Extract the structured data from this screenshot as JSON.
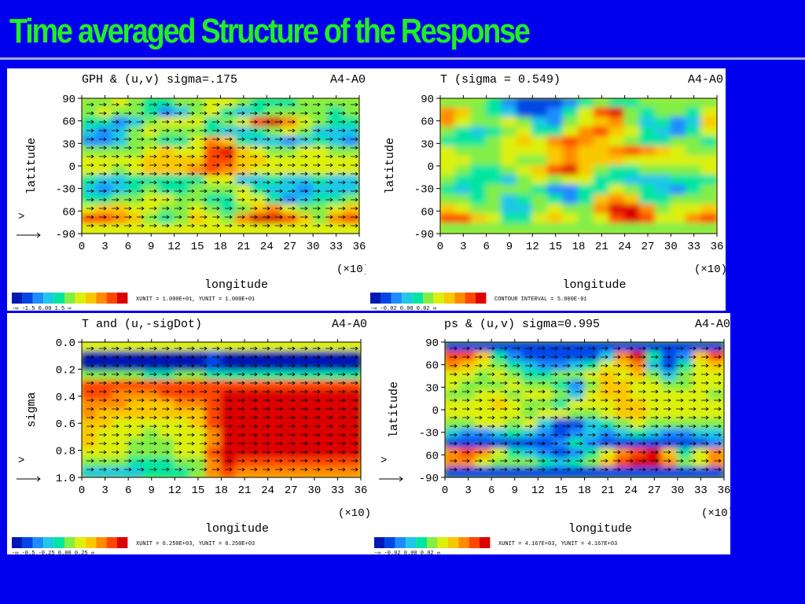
{
  "slide": {
    "title": "Time averaged Structure of the Response",
    "colors": {
      "background": "#0000ee",
      "title": "#22ee22",
      "rule": "#a9a9c4"
    }
  },
  "colorscale": [
    "#0018b4",
    "#0046e6",
    "#1e8cff",
    "#1ec8e6",
    "#00e6a0",
    "#82ee46",
    "#dcf00a",
    "#fac800",
    "#ff8c00",
    "#ff4600",
    "#dc0000"
  ],
  "chart_data": [
    {
      "id": "tl",
      "type": "heatmap",
      "title": "GPH & (u,v) sigma=.175",
      "experiment": "A4-A0",
      "xlabel": "longitude",
      "ylabel": "latitude",
      "x_multiplier": "(×10)",
      "xticks": [
        "0",
        "3",
        "6",
        "9",
        "12",
        "15",
        "18",
        "21",
        "24",
        "27",
        "30",
        "33",
        "36"
      ],
      "yticks": [
        "90",
        "60",
        "30",
        "0",
        "-30",
        "60",
        "-90"
      ],
      "xlim": [
        0,
        360
      ],
      "ylim": [
        -90,
        90
      ],
      "vectors": true,
      "colorbar_label": "-∞  -1.5  0.00  1.5  ∞",
      "footer": "XUNIT = 1.000E+01, YUNIT = 1.000E+01",
      "field": [
        [
          5,
          5,
          6,
          5,
          4,
          4,
          5,
          5,
          6,
          6,
          5,
          4,
          4,
          4,
          5,
          5,
          5,
          5
        ],
        [
          5,
          6,
          5,
          5,
          4,
          2,
          3,
          5,
          6,
          4,
          3,
          4,
          5,
          5,
          5,
          5,
          4,
          5
        ],
        [
          4,
          4,
          2,
          3,
          5,
          6,
          6,
          6,
          4,
          5,
          6,
          9,
          10,
          8,
          6,
          5,
          4,
          4
        ],
        [
          3,
          2,
          3,
          5,
          6,
          5,
          5,
          5,
          4,
          3,
          3,
          4,
          5,
          6,
          5,
          3,
          3,
          3
        ],
        [
          2,
          2,
          3,
          5,
          5,
          4,
          4,
          6,
          8,
          7,
          4,
          3,
          3,
          2,
          3,
          4,
          3,
          2
        ],
        [
          5,
          5,
          5,
          5,
          6,
          7,
          6,
          6,
          9,
          10,
          7,
          6,
          5,
          5,
          6,
          6,
          5,
          5
        ],
        [
          6,
          6,
          6,
          6,
          7,
          7,
          7,
          7,
          9,
          9,
          7,
          7,
          6,
          6,
          6,
          6,
          6,
          6
        ],
        [
          6,
          6,
          5,
          6,
          7,
          7,
          7,
          8,
          9,
          8,
          7,
          6,
          6,
          6,
          6,
          6,
          6,
          6
        ],
        [
          4,
          3,
          3,
          4,
          4,
          4,
          4,
          4,
          6,
          6,
          3,
          3,
          4,
          3,
          3,
          4,
          3,
          3
        ],
        [
          3,
          2,
          3,
          4,
          5,
          4,
          4,
          5,
          5,
          5,
          6,
          4,
          3,
          3,
          2,
          3,
          3,
          3
        ],
        [
          4,
          4,
          5,
          5,
          6,
          6,
          5,
          5,
          4,
          4,
          6,
          6,
          4,
          2,
          3,
          4,
          4,
          5
        ],
        [
          6,
          7,
          7,
          6,
          6,
          5,
          5,
          6,
          5,
          4,
          5,
          7,
          8,
          6,
          5,
          5,
          6,
          7
        ],
        [
          9,
          9,
          8,
          7,
          5,
          4,
          5,
          7,
          6,
          5,
          8,
          10,
          10,
          9,
          7,
          5,
          8,
          9
        ],
        [
          6,
          6,
          6,
          6,
          6,
          6,
          6,
          6,
          6,
          6,
          6,
          6,
          6,
          6,
          6,
          6,
          6,
          6
        ]
      ]
    },
    {
      "id": "tr",
      "type": "heatmap",
      "title": "T (sigma = 0.549)",
      "experiment": "A4-A0",
      "xlabel": "longitude",
      "ylabel": "latitude",
      "x_multiplier": "(×10)",
      "xticks": [
        "0",
        "3",
        "6",
        "9",
        "12",
        "15",
        "18",
        "21",
        "24",
        "27",
        "30",
        "33",
        "36"
      ],
      "yticks": [
        "90",
        "60",
        "30",
        "0",
        "-30",
        "60",
        "-90"
      ],
      "xlim": [
        0,
        360
      ],
      "ylim": [
        -90,
        90
      ],
      "vectors": false,
      "colorbar_label": "-∞  -0.02  0.00  0.02  ∞",
      "footer": "CONTOUR INTERVAL = 5.000E-01",
      "field": [
        [
          5,
          5,
          5,
          4,
          2,
          1,
          1,
          1,
          2,
          4,
          5,
          4,
          4,
          5,
          5,
          5,
          5,
          5
        ],
        [
          8,
          7,
          5,
          4,
          3,
          1,
          1,
          2,
          4,
          6,
          9,
          10,
          5,
          4,
          5,
          5,
          4,
          6
        ],
        [
          8,
          6,
          5,
          5,
          6,
          5,
          3,
          2,
          5,
          6,
          7,
          8,
          5,
          3,
          4,
          2,
          3,
          7
        ],
        [
          5,
          4,
          3,
          4,
          5,
          6,
          4,
          4,
          6,
          8,
          9,
          7,
          6,
          4,
          3,
          2,
          4,
          6
        ],
        [
          4,
          4,
          4,
          5,
          6,
          7,
          6,
          8,
          9,
          8,
          7,
          6,
          5,
          4,
          4,
          5,
          5,
          4
        ],
        [
          6,
          5,
          5,
          5,
          6,
          6,
          6,
          7,
          8,
          7,
          7,
          8,
          9,
          8,
          7,
          6,
          5,
          5
        ],
        [
          6,
          6,
          5,
          5,
          6,
          5,
          5,
          7,
          8,
          7,
          7,
          7,
          6,
          6,
          6,
          6,
          6,
          6
        ],
        [
          6,
          5,
          4,
          4,
          5,
          6,
          7,
          9,
          10,
          7,
          5,
          4,
          4,
          5,
          5,
          5,
          5,
          6
        ],
        [
          5,
          4,
          4,
          4,
          3,
          5,
          6,
          5,
          6,
          6,
          4,
          4,
          3,
          3,
          3,
          4,
          4,
          4
        ],
        [
          4,
          3,
          4,
          5,
          5,
          5,
          4,
          2,
          2,
          4,
          4,
          6,
          5,
          4,
          3,
          2,
          4,
          5
        ],
        [
          5,
          5,
          4,
          5,
          3,
          4,
          5,
          4,
          2,
          4,
          7,
          8,
          7,
          4,
          4,
          5,
          5,
          5
        ],
        [
          7,
          6,
          5,
          5,
          3,
          3,
          5,
          6,
          5,
          5,
          8,
          10,
          10,
          8,
          5,
          6,
          6,
          7
        ],
        [
          9,
          9,
          7,
          6,
          4,
          4,
          6,
          7,
          6,
          5,
          6,
          9,
          10,
          9,
          6,
          6,
          8,
          9
        ],
        [
          5,
          5,
          5,
          5,
          5,
          5,
          5,
          5,
          5,
          5,
          5,
          5,
          5,
          5,
          5,
          5,
          5,
          5
        ]
      ]
    },
    {
      "id": "bl",
      "type": "heatmap",
      "title": "T and (u,-sigDot)",
      "experiment": "A4-A0",
      "xlabel": "longitude",
      "ylabel": "sigma",
      "x_multiplier": "(×10)",
      "xticks": [
        "0",
        "3",
        "6",
        "9",
        "12",
        "15",
        "18",
        "21",
        "24",
        "27",
        "30",
        "33",
        "36"
      ],
      "yticks": [
        "0.0",
        "0.2",
        "0.4",
        "0.6",
        "0.8",
        "1.0"
      ],
      "xlim": [
        0,
        360
      ],
      "ylim": [
        0.0,
        1.0
      ],
      "vectors": true,
      "colorbar_label": "-∞  -0.5  -0.25  0.00  0.25  ∞",
      "footer": "XUNIT = 6.250E+03, YUNIT = 6.250E+03",
      "field": [
        [
          6,
          6,
          6,
          6,
          6,
          6,
          6,
          6,
          6,
          6,
          6,
          6,
          6,
          6,
          6,
          6,
          6,
          6
        ],
        [
          0,
          0,
          0,
          0,
          0,
          0,
          0,
          0,
          1,
          0,
          0,
          0,
          0,
          0,
          0,
          0,
          0,
          0
        ],
        [
          0,
          0,
          0,
          0,
          0,
          0,
          0,
          0,
          1,
          0,
          0,
          0,
          0,
          0,
          0,
          0,
          0,
          0
        ],
        [
          5,
          5,
          5,
          5,
          4,
          4,
          5,
          5,
          4,
          4,
          4,
          4,
          4,
          4,
          4,
          4,
          4,
          4
        ],
        [
          9,
          9,
          9,
          9,
          9,
          9,
          9,
          9,
          9,
          9,
          9,
          9,
          9,
          9,
          9,
          9,
          9,
          9
        ],
        [
          9,
          9,
          8,
          8,
          8,
          9,
          9,
          9,
          9,
          10,
          10,
          10,
          10,
          10,
          10,
          10,
          10,
          10
        ],
        [
          8,
          8,
          8,
          7,
          7,
          7,
          8,
          8,
          9,
          10,
          10,
          10,
          10,
          10,
          10,
          10,
          10,
          10
        ],
        [
          8,
          7,
          7,
          7,
          7,
          7,
          7,
          7,
          9,
          10,
          10,
          10,
          10,
          10,
          10,
          10,
          10,
          10
        ],
        [
          7,
          7,
          6,
          6,
          6,
          6,
          6,
          7,
          9,
          10,
          10,
          10,
          10,
          10,
          10,
          10,
          10,
          10
        ],
        [
          7,
          6,
          6,
          6,
          5,
          6,
          6,
          6,
          8,
          10,
          10,
          10,
          10,
          10,
          10,
          10,
          10,
          10
        ],
        [
          7,
          6,
          6,
          5,
          5,
          5,
          6,
          6,
          8,
          10,
          10,
          10,
          10,
          10,
          10,
          10,
          10,
          10
        ],
        [
          6,
          6,
          6,
          5,
          5,
          5,
          6,
          6,
          9,
          10,
          10,
          10,
          10,
          10,
          10,
          10,
          10,
          10
        ],
        [
          5,
          5,
          5,
          4,
          4,
          4,
          5,
          5,
          8,
          10,
          9,
          9,
          9,
          9,
          9,
          9,
          9,
          9
        ],
        [
          3,
          3,
          3,
          3,
          4,
          4,
          4,
          5,
          8,
          9,
          8,
          8,
          8,
          8,
          8,
          8,
          8,
          8
        ]
      ]
    },
    {
      "id": "br",
      "type": "heatmap",
      "title": "ps & (u,v) sigma=0.995",
      "experiment": "A4-A0",
      "xlabel": "longitude",
      "ylabel": "latitude",
      "x_multiplier": "(×10)",
      "xticks": [
        "0",
        "3",
        "6",
        "9",
        "12",
        "15",
        "18",
        "21",
        "24",
        "27",
        "30",
        "33",
        "36"
      ],
      "yticks": [
        "90",
        "60",
        "30",
        "0",
        "-30",
        "60",
        "-90"
      ],
      "xlim": [
        0,
        360
      ],
      "ylim": [
        -90,
        90
      ],
      "vectors": true,
      "colorbar_label": "-∞  -0.02  0.00  0.02  ∞",
      "footer": "XUNIT = 4.167E+03, YUNIT = 4.167E+03",
      "field": [
        [
          1,
          1,
          1,
          1,
          1,
          1,
          1,
          1,
          1,
          1,
          1,
          1,
          1,
          1,
          1,
          1,
          1,
          1
        ],
        [
          9,
          9,
          7,
          4,
          2,
          1,
          1,
          1,
          1,
          1,
          3,
          8,
          10,
          4,
          1,
          2,
          7,
          9
        ],
        [
          8,
          7,
          6,
          5,
          4,
          3,
          2,
          2,
          3,
          4,
          6,
          7,
          8,
          3,
          1,
          4,
          6,
          7
        ],
        [
          6,
          6,
          5,
          6,
          5,
          4,
          4,
          5,
          5,
          6,
          7,
          6,
          7,
          5,
          3,
          5,
          6,
          6
        ],
        [
          6,
          5,
          5,
          5,
          6,
          5,
          5,
          4,
          2,
          5,
          7,
          7,
          6,
          6,
          5,
          5,
          6,
          6
        ],
        [
          5,
          5,
          6,
          6,
          5,
          6,
          6,
          5,
          3,
          6,
          7,
          7,
          6,
          6,
          6,
          6,
          6,
          5
        ],
        [
          6,
          6,
          6,
          7,
          6,
          5,
          5,
          4,
          6,
          6,
          6,
          7,
          7,
          6,
          6,
          6,
          6,
          6
        ],
        [
          6,
          6,
          6,
          6,
          6,
          5,
          6,
          6,
          5,
          5,
          6,
          7,
          7,
          6,
          6,
          6,
          6,
          6
        ],
        [
          5,
          5,
          6,
          6,
          5,
          6,
          3,
          1,
          1,
          3,
          4,
          5,
          6,
          5,
          5,
          5,
          5,
          5
        ],
        [
          3,
          2,
          2,
          3,
          4,
          3,
          2,
          1,
          2,
          3,
          2,
          3,
          4,
          3,
          2,
          2,
          3,
          3
        ],
        [
          1,
          1,
          1,
          1,
          1,
          1,
          1,
          2,
          4,
          2,
          1,
          1,
          1,
          1,
          1,
          1,
          1,
          2
        ],
        [
          8,
          9,
          8,
          6,
          4,
          3,
          2,
          1,
          2,
          4,
          6,
          8,
          9,
          10,
          7,
          4,
          6,
          8
        ],
        [
          8,
          8,
          6,
          5,
          5,
          5,
          4,
          3,
          4,
          5,
          7,
          9,
          10,
          10,
          8,
          5,
          6,
          8
        ],
        [
          1,
          1,
          1,
          1,
          1,
          1,
          1,
          1,
          1,
          1,
          1,
          1,
          1,
          1,
          1,
          1,
          1,
          1
        ]
      ]
    }
  ]
}
